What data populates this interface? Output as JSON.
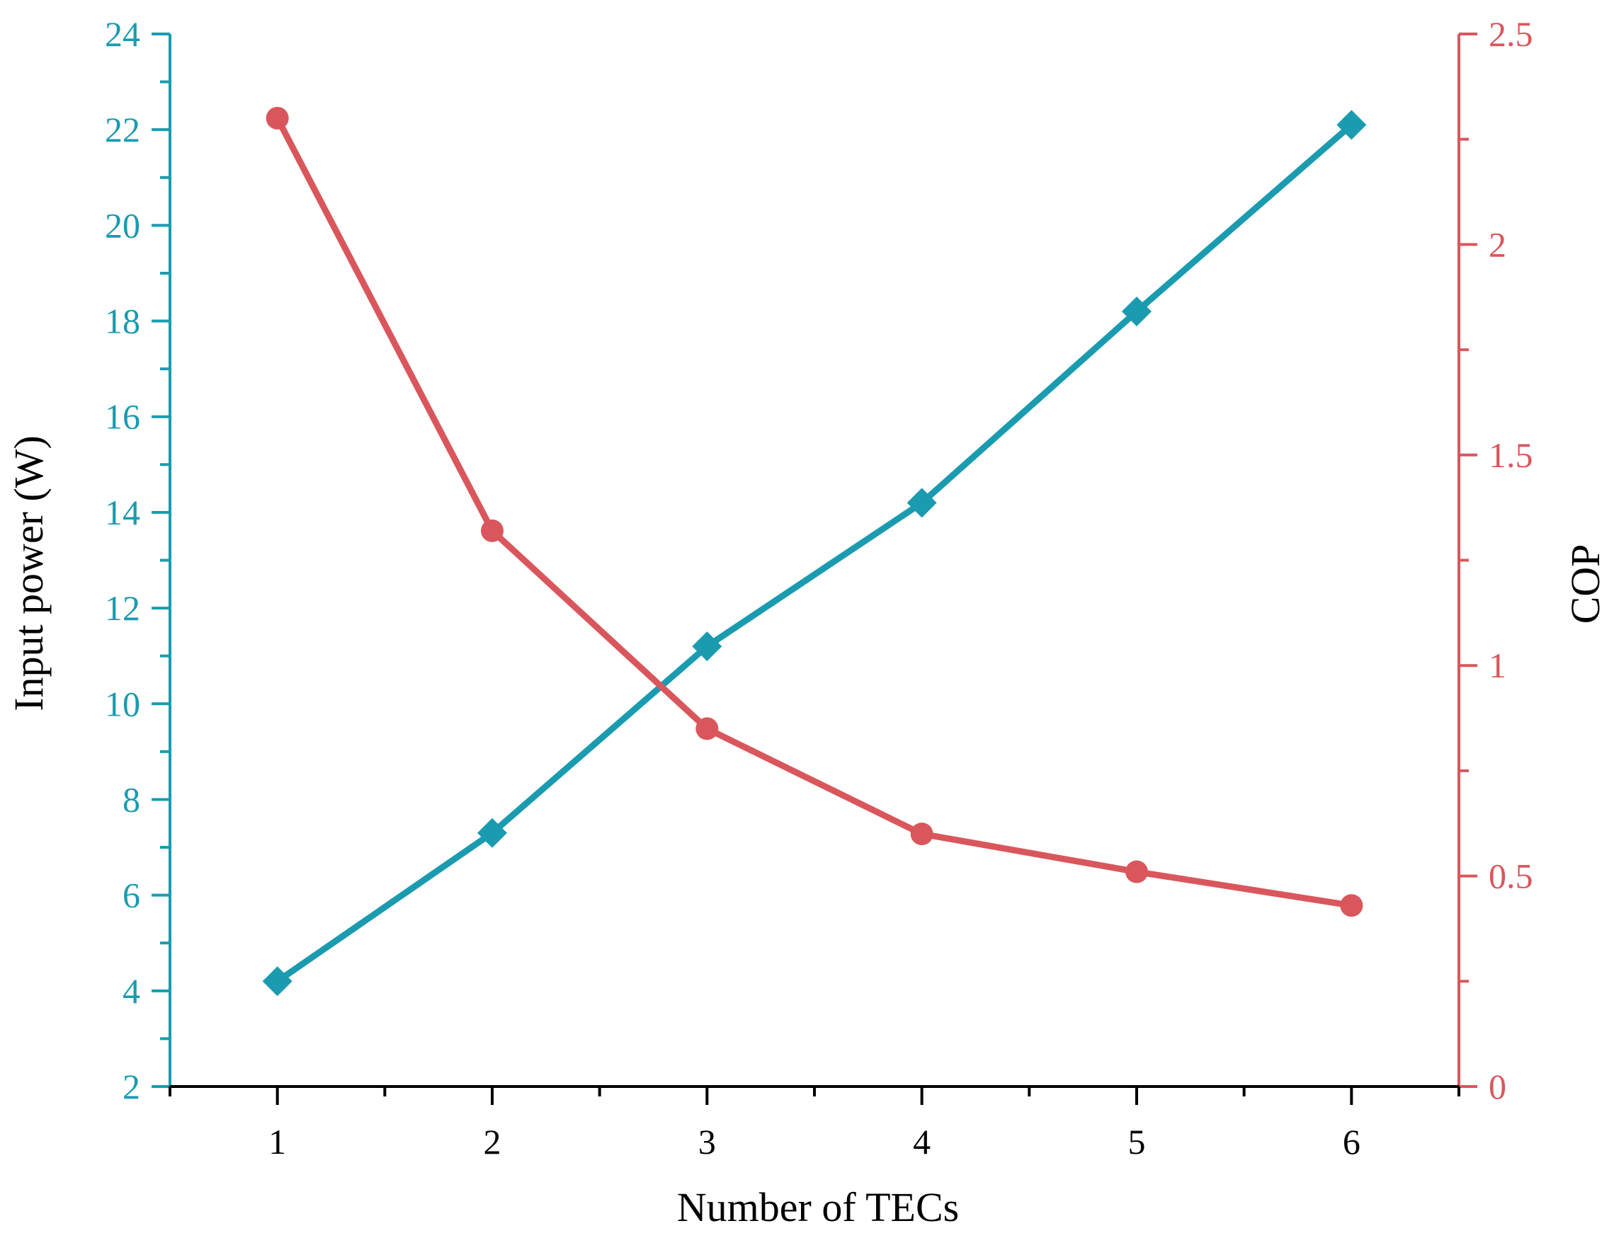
{
  "chart_data": {
    "type": "line",
    "xlabel": "Number of TECs",
    "ylabel_left": "Input power (W)",
    "ylabel_right": "COP",
    "x": [
      1,
      2,
      3,
      4,
      5,
      6
    ],
    "xlim": [
      0.5,
      6.5
    ],
    "ylim_left": [
      2,
      24
    ],
    "ylim_right": [
      0,
      2.5
    ],
    "x_ticks": [
      "1",
      "2",
      "3",
      "4",
      "5",
      "6"
    ],
    "y_left_ticks": [
      "2",
      "4",
      "6",
      "8",
      "10",
      "12",
      "14",
      "16",
      "18",
      "20",
      "22",
      "24"
    ],
    "y_right_ticks": [
      "0",
      "0.5",
      "1",
      "1.5",
      "2",
      "2.5"
    ],
    "grid": false,
    "legend": "none",
    "series": [
      {
        "axis": "left",
        "color": "#1a9bb0",
        "marker": "diamond",
        "values": [
          4.2,
          7.3,
          11.2,
          14.2,
          18.2,
          22.1
        ]
      },
      {
        "axis": "right",
        "color": "#d9575c",
        "marker": "circle",
        "values": [
          2.3,
          1.32,
          0.85,
          0.6,
          0.51,
          0.43
        ]
      }
    ]
  }
}
